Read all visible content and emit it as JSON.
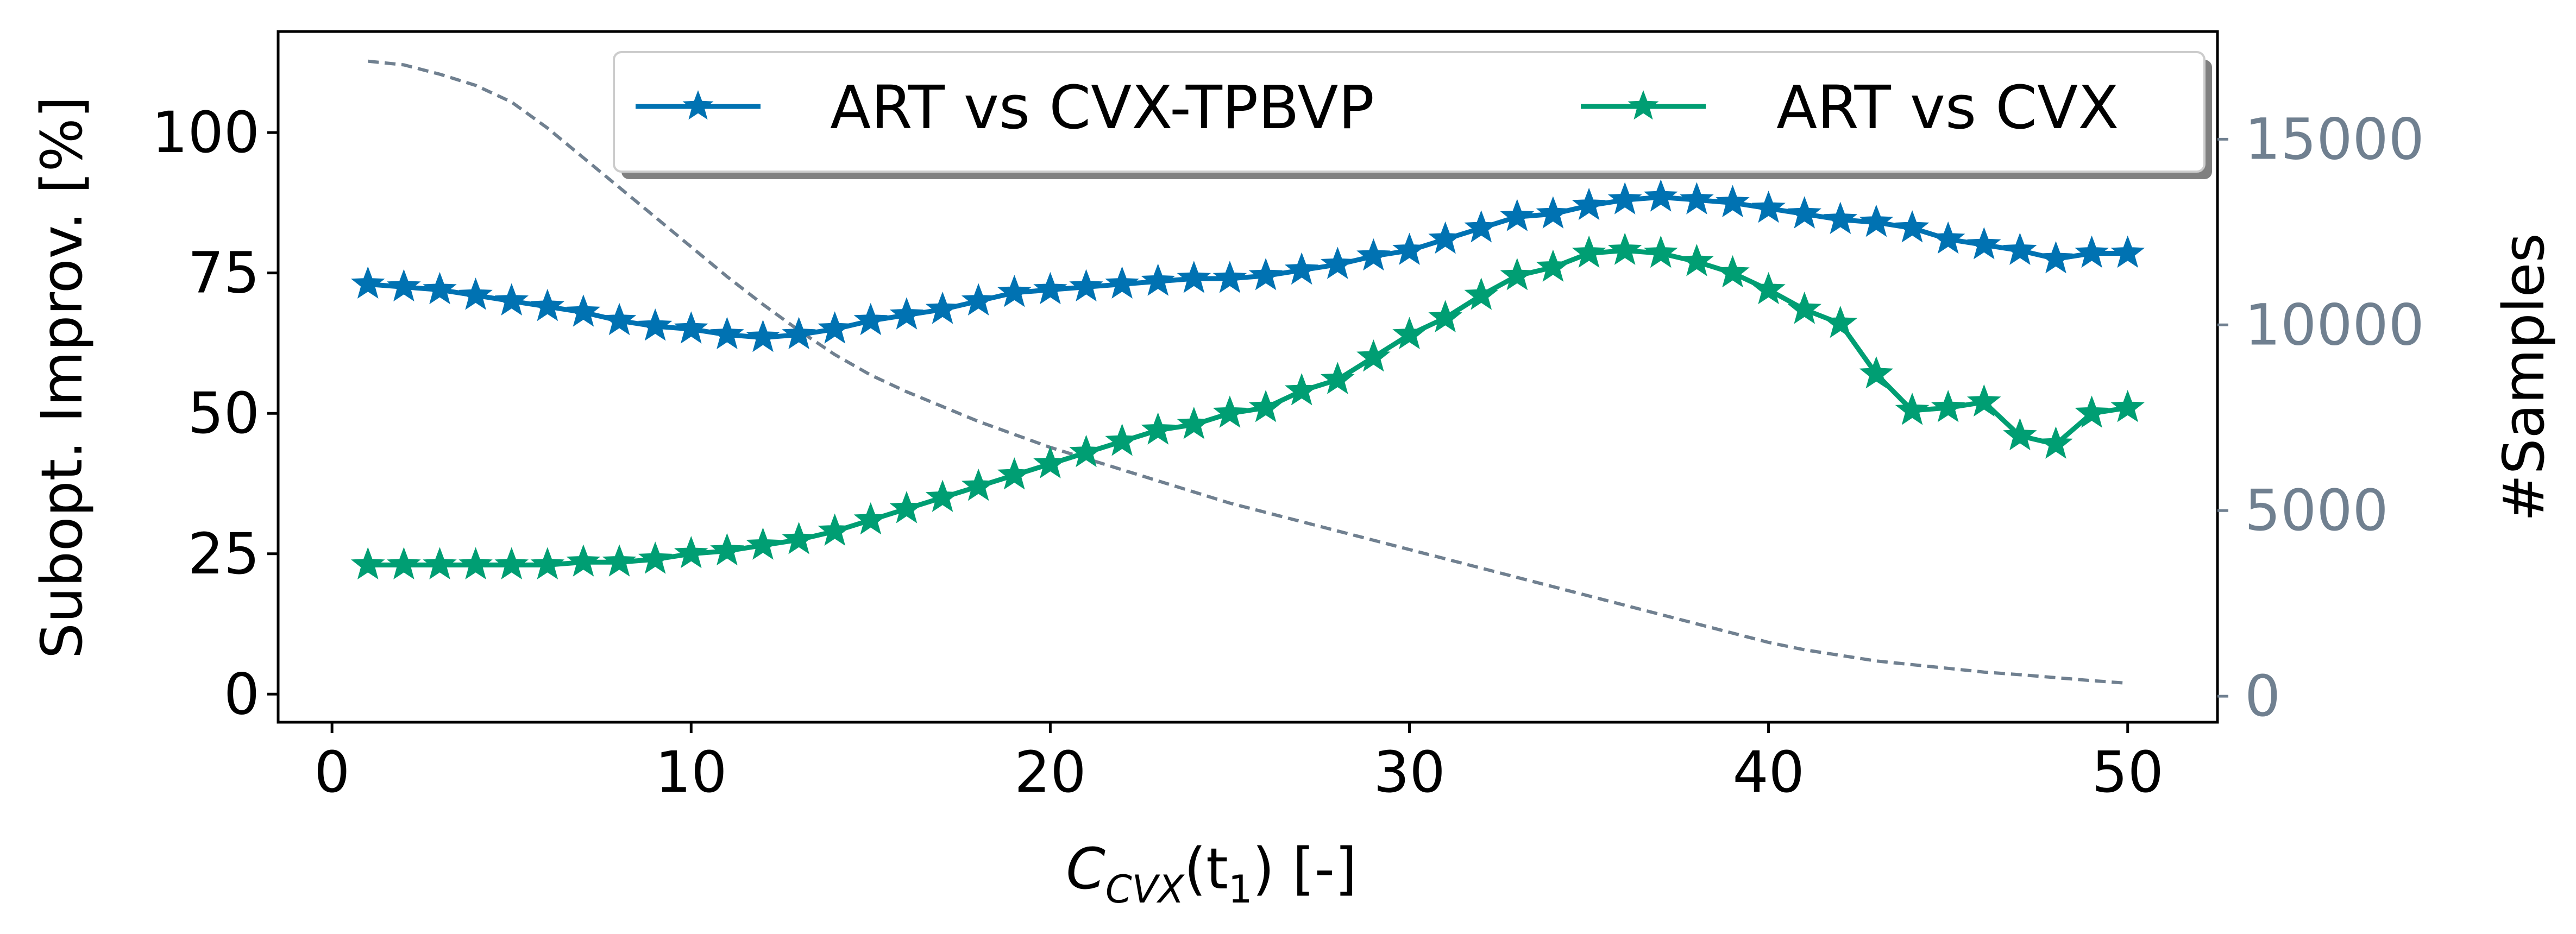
{
  "chart_data": {
    "type": "line",
    "xlabel": {
      "base": "C",
      "sub": "CVX",
      "paren_open": "(t",
      "paren_sub": "1",
      "paren_close": ") [-]"
    },
    "ylabel_left": "Subopt. Improv. [%]",
    "ylabel_right": "#Samples",
    "xlim": [
      -1.5,
      52.5
    ],
    "ylim_left": [
      -5,
      118
    ],
    "ylim_right": [
      -700,
      17900
    ],
    "x_ticks": [
      0,
      10,
      20,
      30,
      40,
      50
    ],
    "y_ticks_left": [
      0,
      25,
      50,
      75,
      100
    ],
    "y_ticks_right": [
      0,
      5000,
      10000,
      15000
    ],
    "grid": false,
    "legend_position": "top-right",
    "colors": {
      "series1": "#0072B2",
      "series2": "#009E73",
      "samples": "#708090",
      "axis_right": "#708090"
    },
    "x": [
      1,
      2,
      3,
      4,
      5,
      6,
      7,
      8,
      9,
      10,
      11,
      12,
      13,
      14,
      15,
      16,
      17,
      18,
      19,
      20,
      21,
      22,
      23,
      24,
      25,
      26,
      27,
      28,
      29,
      30,
      31,
      32,
      33,
      34,
      35,
      36,
      37,
      38,
      39,
      40,
      41,
      42,
      43,
      44,
      45,
      46,
      47,
      48,
      49,
      50
    ],
    "series": [
      {
        "name": "ART vs CVX-TPBVP",
        "axis": "left",
        "marker": "star",
        "values": [
          73,
          72.5,
          72,
          71,
          70,
          69,
          68,
          66.5,
          65.5,
          65,
          64,
          63.5,
          64,
          65,
          66.5,
          67.5,
          68.5,
          70,
          71.5,
          72,
          72.5,
          73,
          73.5,
          74,
          74,
          74.5,
          75.5,
          76.5,
          78,
          79,
          81,
          83,
          85,
          85.5,
          87,
          88,
          88.5,
          88,
          87.5,
          86.5,
          85.5,
          84.5,
          84,
          83,
          81,
          80,
          79,
          77.5,
          78.5,
          78.5
        ]
      },
      {
        "name": "ART vs CVX",
        "axis": "left",
        "marker": "star",
        "values": [
          23,
          23,
          23,
          23,
          23,
          23,
          23.5,
          23.5,
          24,
          25,
          25.5,
          26.5,
          27.5,
          29,
          31,
          33,
          35,
          37,
          39,
          41,
          43,
          45,
          47,
          48,
          50,
          51,
          54,
          56,
          60,
          64,
          67,
          71,
          74.5,
          76,
          78.5,
          79,
          78.5,
          77,
          75,
          72,
          68.5,
          66,
          57,
          50.5,
          51,
          52,
          46,
          44.5,
          50,
          51
        ]
      },
      {
        "axis": "right",
        "style": "dashed",
        "values": [
          17100,
          17000,
          16750,
          16450,
          16000,
          15300,
          14500,
          13700,
          12900,
          12100,
          11300,
          10550,
          9850,
          9200,
          8650,
          8200,
          7800,
          7400,
          7050,
          6700,
          6400,
          6100,
          5800,
          5500,
          5200,
          4950,
          4700,
          4450,
          4200,
          3950,
          3700,
          3450,
          3200,
          2950,
          2700,
          2450,
          2200,
          1950,
          1700,
          1450,
          1250,
          1100,
          950,
          850,
          750,
          650,
          580,
          500,
          420,
          350
        ]
      }
    ]
  }
}
